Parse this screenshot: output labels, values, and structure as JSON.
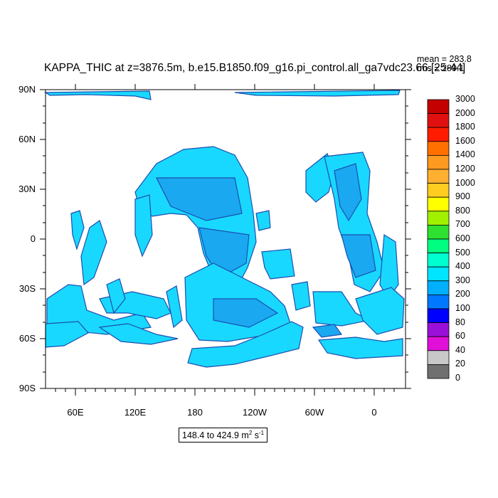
{
  "header": {
    "title": "KAPPA_THIC at z=3876.5m, b.e15.B1850.f09_g16.pi_control.all_ga7vdc23.66.[25-44]",
    "mean": "mean = 283.8",
    "rms": "rms = 289.1"
  },
  "axes": {
    "y_ticks": [
      "90N",
      "60N",
      "30N",
      "0",
      "30S",
      "60S",
      "90S"
    ],
    "x_ticks": [
      "60E",
      "120E",
      "180",
      "120W",
      "60W",
      "0"
    ]
  },
  "colorbar": {
    "levels": [
      "3000",
      "2000",
      "1800",
      "1600",
      "1400",
      "1200",
      "1000",
      "900",
      "800",
      "700",
      "600",
      "500",
      "400",
      "300",
      "200",
      "100",
      "80",
      "60",
      "40",
      "20",
      "0"
    ],
    "colors": [
      "#c40000",
      "#e01010",
      "#ff1c00",
      "#ff7000",
      "#ff9a20",
      "#ffb030",
      "#ffcc20",
      "#ffff00",
      "#a0f000",
      "#30e030",
      "#00ff80",
      "#00ffd0",
      "#00e5ff",
      "#00b0ff",
      "#0078ff",
      "#0000ff",
      "#9a10d8",
      "#e010d8",
      "#c8c8c8",
      "#707070"
    ]
  },
  "range": {
    "text": "148.4 to 424.9 m",
    "unit_sup1": "2",
    "unit_s": " s",
    "unit_sup2": "-1"
  }
}
